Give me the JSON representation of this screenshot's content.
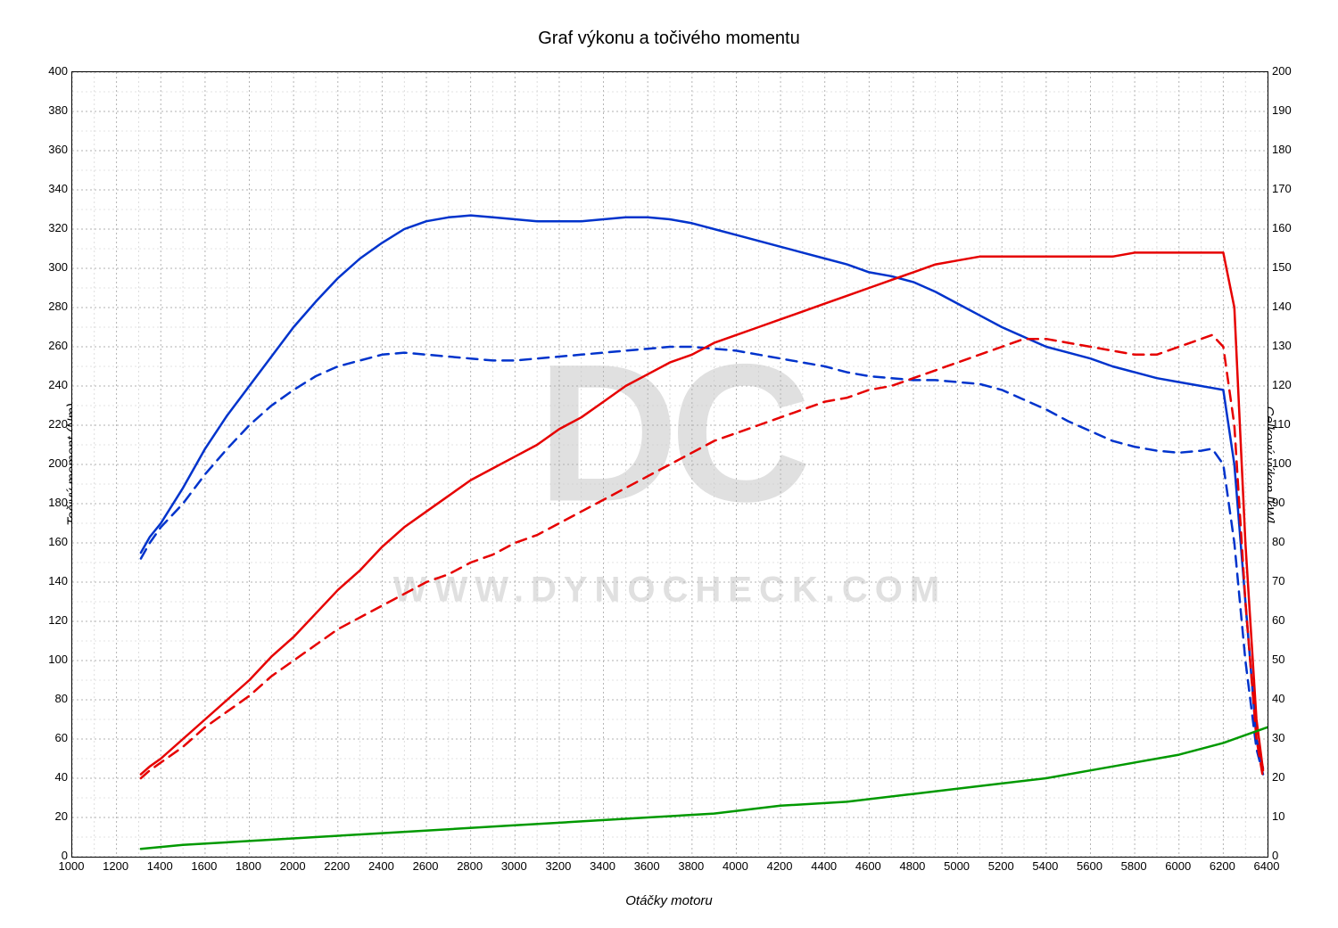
{
  "chart": {
    "type": "line",
    "title": "Graf výkonu a točivého momentu",
    "xlabel": "Otáčky motoru",
    "ylabel_left": "Točivý moment (Nm)",
    "ylabel_right": "Celkový výkon [kW]",
    "background_color": "#ffffff",
    "border_color": "#000000",
    "grid_color_major": "#b0b0b0",
    "grid_color_minor": "#c8c8c8",
    "grid_dash": "2,3",
    "title_fontsize": 20,
    "label_fontsize": 15,
    "tick_fontsize": 13,
    "watermark_main": "DC",
    "watermark_sub": "WWW.DYNOCHECK.COM",
    "watermark_color": "#e0e0e0",
    "x_axis": {
      "min": 1000,
      "max": 6400,
      "tick_step": 200,
      "minor_step": 100
    },
    "y_left": {
      "min": 0,
      "max": 400,
      "tick_step": 20,
      "minor_step": 10
    },
    "y_right": {
      "min": 0,
      "max": 200,
      "tick_step": 10,
      "minor_step": 5
    },
    "line_width_solid": 2.5,
    "line_width_dashed": 2.5,
    "dash_pattern": "12,8",
    "series": [
      {
        "name": "torque_tuned",
        "axis": "left",
        "color": "#0033cc",
        "style": "solid",
        "data": [
          [
            1310,
            155
          ],
          [
            1350,
            163
          ],
          [
            1400,
            170
          ],
          [
            1500,
            188
          ],
          [
            1600,
            208
          ],
          [
            1700,
            225
          ],
          [
            1800,
            240
          ],
          [
            1900,
            255
          ],
          [
            2000,
            270
          ],
          [
            2100,
            283
          ],
          [
            2200,
            295
          ],
          [
            2300,
            305
          ],
          [
            2400,
            313
          ],
          [
            2500,
            320
          ],
          [
            2600,
            324
          ],
          [
            2700,
            326
          ],
          [
            2800,
            327
          ],
          [
            2900,
            326
          ],
          [
            3000,
            325
          ],
          [
            3100,
            324
          ],
          [
            3200,
            324
          ],
          [
            3300,
            324
          ],
          [
            3400,
            325
          ],
          [
            3500,
            326
          ],
          [
            3600,
            326
          ],
          [
            3700,
            325
          ],
          [
            3800,
            323
          ],
          [
            3900,
            320
          ],
          [
            4000,
            317
          ],
          [
            4100,
            314
          ],
          [
            4200,
            311
          ],
          [
            4300,
            308
          ],
          [
            4400,
            305
          ],
          [
            4500,
            302
          ],
          [
            4600,
            298
          ],
          [
            4700,
            296
          ],
          [
            4800,
            293
          ],
          [
            4900,
            288
          ],
          [
            5000,
            282
          ],
          [
            5100,
            276
          ],
          [
            5200,
            270
          ],
          [
            5300,
            265
          ],
          [
            5400,
            260
          ],
          [
            5500,
            257
          ],
          [
            5600,
            254
          ],
          [
            5700,
            250
          ],
          [
            5800,
            247
          ],
          [
            5900,
            244
          ],
          [
            6000,
            242
          ],
          [
            6100,
            240
          ],
          [
            6150,
            239
          ],
          [
            6200,
            238
          ],
          [
            6250,
            200
          ],
          [
            6300,
            130
          ],
          [
            6350,
            60
          ],
          [
            6380,
            45
          ]
        ]
      },
      {
        "name": "torque_stock",
        "axis": "left",
        "color": "#0033cc",
        "style": "dashed",
        "data": [
          [
            1310,
            152
          ],
          [
            1350,
            160
          ],
          [
            1400,
            168
          ],
          [
            1500,
            180
          ],
          [
            1600,
            195
          ],
          [
            1700,
            208
          ],
          [
            1800,
            220
          ],
          [
            1900,
            230
          ],
          [
            2000,
            238
          ],
          [
            2100,
            245
          ],
          [
            2200,
            250
          ],
          [
            2300,
            253
          ],
          [
            2400,
            256
          ],
          [
            2500,
            257
          ],
          [
            2600,
            256
          ],
          [
            2700,
            255
          ],
          [
            2800,
            254
          ],
          [
            2900,
            253
          ],
          [
            3000,
            253
          ],
          [
            3100,
            254
          ],
          [
            3200,
            255
          ],
          [
            3300,
            256
          ],
          [
            3400,
            257
          ],
          [
            3500,
            258
          ],
          [
            3600,
            259
          ],
          [
            3700,
            260
          ],
          [
            3800,
            260
          ],
          [
            3900,
            259
          ],
          [
            4000,
            258
          ],
          [
            4100,
            256
          ],
          [
            4200,
            254
          ],
          [
            4300,
            252
          ],
          [
            4400,
            250
          ],
          [
            4500,
            247
          ],
          [
            4600,
            245
          ],
          [
            4700,
            244
          ],
          [
            4800,
            243
          ],
          [
            4900,
            243
          ],
          [
            5000,
            242
          ],
          [
            5100,
            241
          ],
          [
            5200,
            238
          ],
          [
            5300,
            233
          ],
          [
            5400,
            228
          ],
          [
            5500,
            222
          ],
          [
            5600,
            217
          ],
          [
            5700,
            212
          ],
          [
            5800,
            209
          ],
          [
            5900,
            207
          ],
          [
            6000,
            206
          ],
          [
            6100,
            207
          ],
          [
            6150,
            208
          ],
          [
            6200,
            200
          ],
          [
            6250,
            160
          ],
          [
            6300,
            100
          ],
          [
            6350,
            55
          ],
          [
            6380,
            42
          ]
        ]
      },
      {
        "name": "power_tuned",
        "axis": "right",
        "color": "#e60000",
        "style": "solid",
        "data": [
          [
            1310,
            21
          ],
          [
            1350,
            23
          ],
          [
            1400,
            25
          ],
          [
            1500,
            30
          ],
          [
            1600,
            35
          ],
          [
            1700,
            40
          ],
          [
            1800,
            45
          ],
          [
            1900,
            51
          ],
          [
            2000,
            56
          ],
          [
            2100,
            62
          ],
          [
            2200,
            68
          ],
          [
            2300,
            73
          ],
          [
            2400,
            79
          ],
          [
            2500,
            84
          ],
          [
            2600,
            88
          ],
          [
            2700,
            92
          ],
          [
            2800,
            96
          ],
          [
            2900,
            99
          ],
          [
            3000,
            102
          ],
          [
            3100,
            105
          ],
          [
            3200,
            109
          ],
          [
            3300,
            112
          ],
          [
            3400,
            116
          ],
          [
            3500,
            120
          ],
          [
            3600,
            123
          ],
          [
            3700,
            126
          ],
          [
            3800,
            128
          ],
          [
            3900,
            131
          ],
          [
            4000,
            133
          ],
          [
            4100,
            135
          ],
          [
            4200,
            137
          ],
          [
            4300,
            139
          ],
          [
            4400,
            141
          ],
          [
            4500,
            143
          ],
          [
            4600,
            145
          ],
          [
            4700,
            147
          ],
          [
            4800,
            149
          ],
          [
            4900,
            151
          ],
          [
            5000,
            152
          ],
          [
            5100,
            153
          ],
          [
            5200,
            153
          ],
          [
            5300,
            153
          ],
          [
            5400,
            153
          ],
          [
            5500,
            153
          ],
          [
            5600,
            153
          ],
          [
            5700,
            153
          ],
          [
            5800,
            154
          ],
          [
            5900,
            154
          ],
          [
            6000,
            154
          ],
          [
            6100,
            154
          ],
          [
            6150,
            154
          ],
          [
            6200,
            154
          ],
          [
            6250,
            140
          ],
          [
            6300,
            80
          ],
          [
            6350,
            35
          ],
          [
            6380,
            22
          ]
        ]
      },
      {
        "name": "power_stock",
        "axis": "right",
        "color": "#e60000",
        "style": "dashed",
        "data": [
          [
            1310,
            20
          ],
          [
            1350,
            22
          ],
          [
            1400,
            24
          ],
          [
            1500,
            28
          ],
          [
            1600,
            33
          ],
          [
            1700,
            37
          ],
          [
            1800,
            41
          ],
          [
            1900,
            46
          ],
          [
            2000,
            50
          ],
          [
            2100,
            54
          ],
          [
            2200,
            58
          ],
          [
            2300,
            61
          ],
          [
            2400,
            64
          ],
          [
            2500,
            67
          ],
          [
            2600,
            70
          ],
          [
            2700,
            72
          ],
          [
            2800,
            75
          ],
          [
            2900,
            77
          ],
          [
            3000,
            80
          ],
          [
            3100,
            82
          ],
          [
            3200,
            85
          ],
          [
            3300,
            88
          ],
          [
            3400,
            91
          ],
          [
            3500,
            94
          ],
          [
            3600,
            97
          ],
          [
            3700,
            100
          ],
          [
            3800,
            103
          ],
          [
            3900,
            106
          ],
          [
            4000,
            108
          ],
          [
            4100,
            110
          ],
          [
            4200,
            112
          ],
          [
            4300,
            114
          ],
          [
            4400,
            116
          ],
          [
            4500,
            117
          ],
          [
            4600,
            119
          ],
          [
            4700,
            120
          ],
          [
            4800,
            122
          ],
          [
            4900,
            124
          ],
          [
            5000,
            126
          ],
          [
            5100,
            128
          ],
          [
            5200,
            130
          ],
          [
            5300,
            132
          ],
          [
            5400,
            132
          ],
          [
            5500,
            131
          ],
          [
            5600,
            130
          ],
          [
            5700,
            129
          ],
          [
            5800,
            128
          ],
          [
            5900,
            128
          ],
          [
            6000,
            130
          ],
          [
            6100,
            132
          ],
          [
            6150,
            133
          ],
          [
            6200,
            130
          ],
          [
            6250,
            110
          ],
          [
            6300,
            65
          ],
          [
            6350,
            30
          ],
          [
            6380,
            20
          ]
        ]
      },
      {
        "name": "loss_power",
        "axis": "right",
        "color": "#009900",
        "style": "solid",
        "data": [
          [
            1310,
            2
          ],
          [
            1500,
            3
          ],
          [
            1800,
            4
          ],
          [
            2100,
            5
          ],
          [
            2400,
            6
          ],
          [
            2700,
            7
          ],
          [
            3000,
            8
          ],
          [
            3300,
            9
          ],
          [
            3600,
            10
          ],
          [
            3900,
            11
          ],
          [
            4200,
            13
          ],
          [
            4500,
            14
          ],
          [
            4800,
            16
          ],
          [
            5100,
            18
          ],
          [
            5400,
            20
          ],
          [
            5700,
            23
          ],
          [
            6000,
            26
          ],
          [
            6200,
            29
          ],
          [
            6350,
            32
          ],
          [
            6400,
            33
          ]
        ]
      }
    ]
  }
}
